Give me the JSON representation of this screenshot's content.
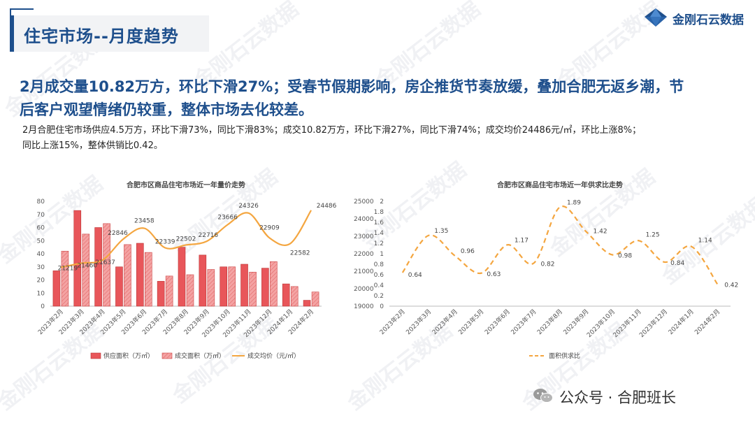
{
  "header": {
    "title": "住宅市场--月度趋势",
    "brand": "金刚石云数据"
  },
  "headline": {
    "line1": "2月成交量10.82万方，环比下滑27%；受春节假期影响，房企推货节奏放缓，叠加合肥无返乡潮，节",
    "line2": "后客户观望情绪仍较重，整体市场去化较差。"
  },
  "subtext": {
    "line1": "2月合肥住宅市场供应4.5万方，环比下滑73%，同比下滑83%；成交10.82万方，环比下滑27%，同比下滑74%；成交均价24486元/㎡，环比上涨8%；",
    "line2": "同比上涨15%，整体供销比0.42。"
  },
  "watermark_text": "金刚石云数据",
  "footer": {
    "wechat": "公众号 · 合肥班长"
  },
  "colors": {
    "brand_blue": "#1e4f8c",
    "supply_bar": "#e8565a",
    "deal_bar": "#f4a3a3",
    "price_line": "#f4a640",
    "ratio_line": "#f4a640"
  },
  "chart_data": [
    {
      "type": "bar",
      "title": "合肥市区商品住宅市场近一年量价走势",
      "categories": [
        "2023年2月",
        "2023年3月",
        "2023年4月",
        "2023年5月",
        "2023年6月",
        "2023年7月",
        "2023年8月",
        "2023年9月",
        "2023年10月",
        "2023年11月",
        "2023年12月",
        "2024年1月",
        "2024年2月"
      ],
      "series": [
        {
          "name": "供应面积（万㎡）",
          "kind": "bar",
          "axis": "left",
          "values": [
            27,
            73,
            60,
            30,
            48,
            19,
            45,
            39,
            30,
            32,
            29,
            17,
            4.5
          ]
        },
        {
          "name": "成交面积（万㎡）",
          "kind": "bar",
          "axis": "left",
          "values": [
            42,
            55,
            63,
            47,
            41,
            23,
            24,
            28,
            30,
            26,
            34,
            15,
            10.82
          ]
        },
        {
          "name": "成交均价（元/㎡）",
          "kind": "line",
          "axis": "right",
          "values": [
            21219,
            21460,
            21637,
            22846,
            23458,
            22339,
            22502,
            22716,
            23666,
            24326,
            22909,
            22582,
            24486
          ]
        }
      ],
      "data_labels": [
        "21219",
        "21460",
        "21637",
        "22846",
        "23458",
        "22339",
        "22502",
        "22716",
        "23666",
        "24326",
        "22909",
        "22582",
        "24486"
      ],
      "yleft": {
        "min": 0,
        "max": 80,
        "ticks": [
          "0",
          "10",
          "20",
          "30",
          "40",
          "50",
          "60",
          "70",
          "80"
        ]
      },
      "yright": {
        "min": 19000,
        "max": 25000,
        "ticks": [
          "19000",
          "20000",
          "21000",
          "22000",
          "23000",
          "24000",
          "25000"
        ]
      },
      "legend": "bottom"
    },
    {
      "type": "line",
      "title": "合肥市区商品住宅市场近一年供求比走势",
      "categories": [
        "2023年2月",
        "2023年3月",
        "2023年4月",
        "2023年5月",
        "2023年6月",
        "2023年7月",
        "2023年8月",
        "2023年9月",
        "2023年10月",
        "2023年11月",
        "2023年12月",
        "2024年1月",
        "2024年2月"
      ],
      "series": [
        {
          "name": "面积供求比",
          "values": [
            0.64,
            1.35,
            0.96,
            0.63,
            1.17,
            0.82,
            1.89,
            1.42,
            0.98,
            1.25,
            0.84,
            1.14,
            0.42
          ]
        }
      ],
      "data_labels": [
        "0.64",
        "1.35",
        "0.96",
        "0.63",
        "1.17",
        "0.82",
        "1.89",
        "1.42",
        "0.98",
        "1.25",
        "0.84",
        "1.14",
        "0.42"
      ],
      "y": {
        "min": 0,
        "max": 2,
        "ticks": [
          "0",
          "0.2",
          "0.4",
          "0.6",
          "0.8",
          "1",
          "1.2",
          "1.4",
          "1.6",
          "1.8",
          "2"
        ]
      },
      "style": "dashed",
      "legend": "bottom"
    }
  ]
}
